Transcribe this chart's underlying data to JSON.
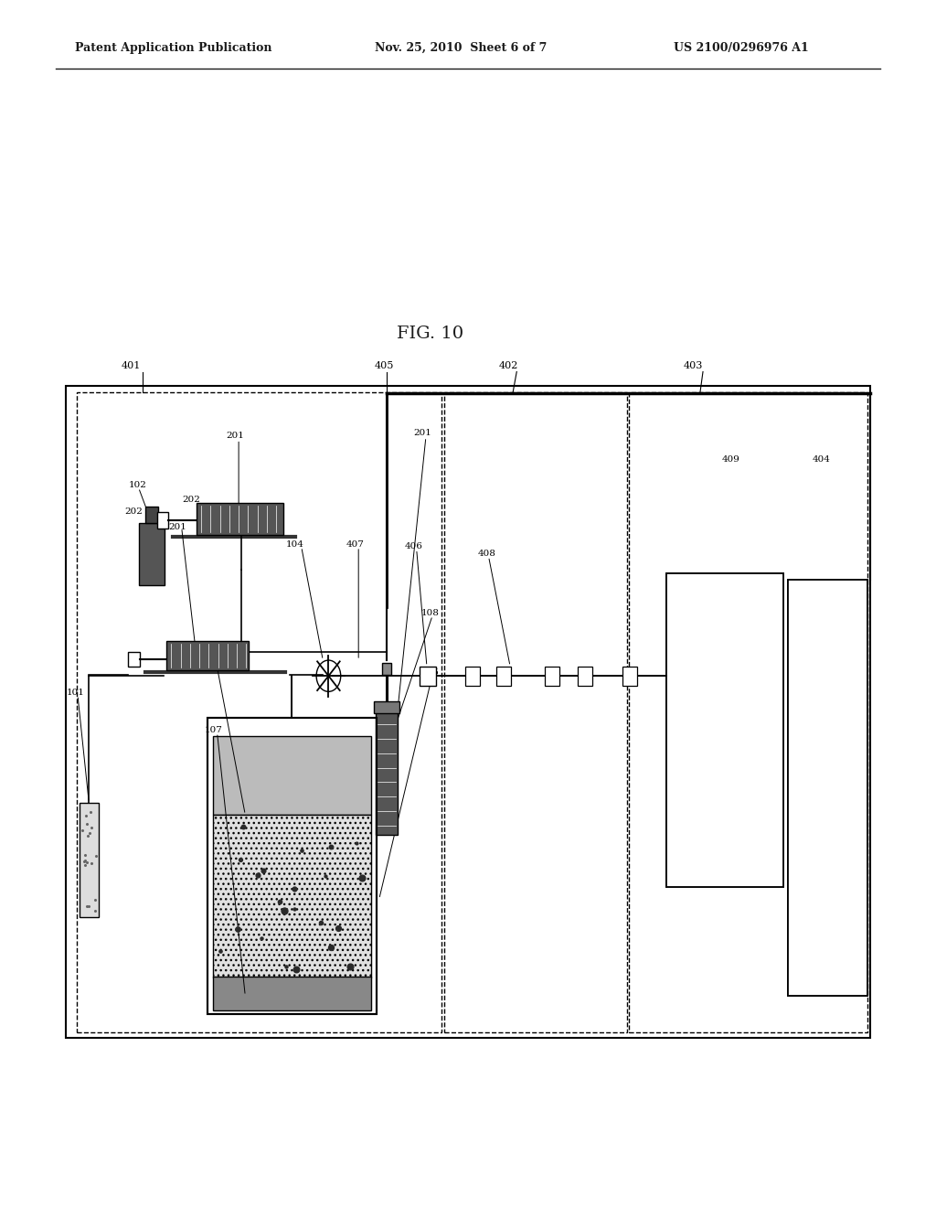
{
  "bg_color": "#ffffff",
  "line_color": "#1a1a1a",
  "header_left": "Patent Application Publication",
  "header_mid": "Nov. 25, 2010  Sheet 6 of 7",
  "header_right": "US 2100/0296976 A1",
  "fig_label": "FIG. 10"
}
